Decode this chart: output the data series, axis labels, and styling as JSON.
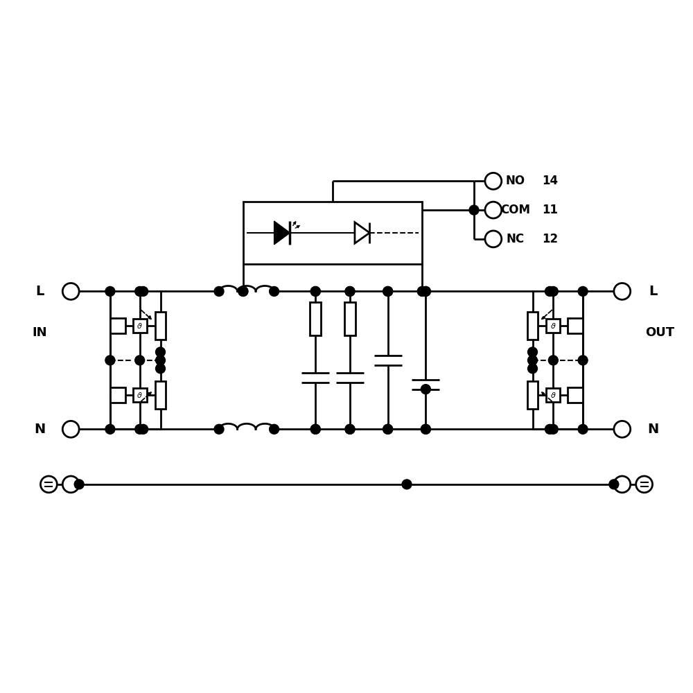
{
  "background": "#ffffff",
  "lw": 2.0,
  "lw_thin": 1.5,
  "figsize": [
    10,
    10
  ],
  "dpi": 100,
  "labels": {
    "L_in": "L",
    "L_out": "L",
    "N_in": "N",
    "N_out": "N",
    "IN": "IN",
    "OUT": "OUT",
    "NO": "NO",
    "COM": "COM",
    "NC": "NC",
    "n14": "14",
    "n11": "11",
    "n12": "12"
  },
  "yL": 5.8,
  "yN": 3.8,
  "yG": 3.0,
  "xIN": 1.0,
  "xOUT": 9.0,
  "xIndL_s": 3.15,
  "xIndL_e": 3.95,
  "xIndN_s": 3.15,
  "xIndN_e": 3.95
}
